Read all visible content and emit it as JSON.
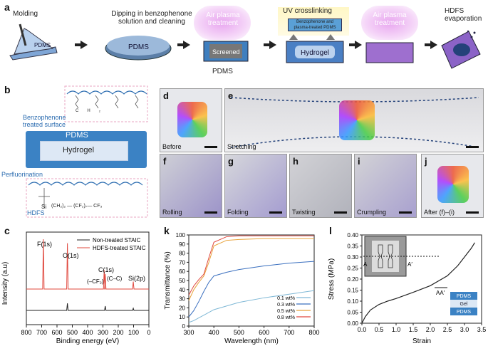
{
  "panels": {
    "a": "a",
    "b": "b",
    "c": "c",
    "d": "d",
    "e": "e",
    "f": "f",
    "g": "g",
    "h": "h",
    "i": "i",
    "j": "j",
    "k": "k",
    "l": "l"
  },
  "a": {
    "molding": "Molding",
    "pdms_small": "PDMS",
    "dipping_line1": "Dipping in benzophenone",
    "dipping_line2": "solution and cleaning",
    "dish_pdms": "PDMS",
    "air_plasma_1_line1": "Air plasma",
    "air_plasma_1_line2": "treatment",
    "screened": "Screened",
    "pdms_bottom": "PDMS",
    "uv": "UV crosslinking",
    "bz_line1": "Benzophenone and",
    "bz_line2": "plasma-treated PDMS",
    "hydrogel": "Hydrogel",
    "air_plasma_2_line1": "Air plasma",
    "air_plasma_2_line2": "treatment",
    "hdfs_line1": "HDFS",
    "hdfs_line2": "evaporation"
  },
  "b": {
    "benzo_line1": "Benzophenone",
    "benzo_line2": "treated surface",
    "pdms": "PDMS",
    "hydrogel": "Hydrogel",
    "perfluorination": "Perfluorination",
    "hdfs": "HDFS",
    "ch": "CH₂",
    "si": "Si",
    "chain": "(CH₂)₂ — (CF₂)₇— CF₃"
  },
  "photos": {
    "d": "Before",
    "e": "Stretching",
    "f": "Rolling",
    "g": "Folding",
    "h": "Twisting",
    "i": "Crumpling",
    "j": "After (f)–(i)"
  },
  "c": {
    "ylabel": "Intensity (a.u)",
    "xlabel": "Binding energy (eV)",
    "legend_non": "Non-treated STAIC",
    "legend_hdfs": "HDFS-treated STAIC",
    "peak_f": "F(1s)",
    "peak_o": "O(1s)",
    "peak_c": "C(1s)",
    "peak_cf": "(–CF₂)",
    "peak_cc": "(C–C)",
    "peak_si": "Si(2p)",
    "xticks": [
      "800",
      "700",
      "600",
      "500",
      "400",
      "300",
      "200",
      "100",
      "0"
    ]
  },
  "chart_data": [
    {
      "type": "line",
      "panel": "c",
      "xlabel": "Binding energy (eV)",
      "ylabel": "Intensity (a.u)",
      "xlim": [
        800,
        0
      ],
      "series": [
        {
          "name": "Non-treated STAIC",
          "color": "#222222",
          "peaks": [
            {
              "x": 532,
              "h": 0.33
            },
            {
              "x": 285,
              "h": 0.2
            },
            {
              "x": 102,
              "h": 0.1
            }
          ]
        },
        {
          "name": "HDFS-treated STAIC",
          "color": "#e0483e",
          "peaks": [
            {
              "x": 689,
              "h": 1.0
            },
            {
              "x": 532,
              "h": 0.92
            },
            {
              "x": 292,
              "h": 0.38
            },
            {
              "x": 285,
              "h": 0.3
            },
            {
              "x": 102,
              "h": 0.15
            }
          ]
        }
      ]
    },
    {
      "type": "line",
      "panel": "k",
      "xlabel": "Wavelength (nm)",
      "ylabel": "Transmittance (%)",
      "xlim": [
        300,
        800
      ],
      "ylim": [
        0,
        100
      ],
      "xticks": [
        300,
        400,
        500,
        600,
        700,
        800
      ],
      "yticks": [
        0,
        10,
        20,
        30,
        40,
        50,
        60,
        70,
        80,
        90,
        100
      ],
      "series": [
        {
          "name": "0.1 wt%",
          "color": "#7fb8d6",
          "x": [
            300,
            320,
            340,
            360,
            380,
            400,
            450,
            500,
            600,
            700,
            800
          ],
          "y": [
            4,
            6,
            9,
            12,
            15,
            18,
            22,
            26,
            31,
            35,
            39
          ]
        },
        {
          "name": "0.3 wt%",
          "color": "#3a6fbf",
          "x": [
            300,
            320,
            340,
            360,
            380,
            400,
            450,
            500,
            600,
            700,
            800
          ],
          "y": [
            10,
            17,
            27,
            38,
            48,
            55,
            59,
            62,
            66,
            69,
            71
          ]
        },
        {
          "name": "0.5 wt%",
          "color": "#e8a23a",
          "x": [
            300,
            320,
            340,
            360,
            380,
            400,
            450,
            500,
            600,
            700,
            800
          ],
          "y": [
            28,
            40,
            48,
            55,
            70,
            88,
            94,
            95,
            96,
            96,
            96
          ]
        },
        {
          "name": "0.8 wt%",
          "color": "#e0483e",
          "x": [
            300,
            320,
            340,
            360,
            380,
            400,
            450,
            500,
            600,
            700,
            800
          ],
          "y": [
            34,
            44,
            51,
            57,
            75,
            92,
            98,
            99,
            99,
            99,
            99
          ]
        }
      ]
    },
    {
      "type": "line",
      "panel": "l",
      "xlabel": "Strain",
      "ylabel": "Stress (MPa)",
      "xlim": [
        0,
        3.5
      ],
      "ylim": [
        0,
        0.4
      ],
      "xticks": [
        0,
        0.5,
        1.0,
        1.5,
        2.0,
        2.5,
        3.0,
        3.5
      ],
      "yticks": [
        0,
        0.05,
        0.1,
        0.15,
        0.2,
        0.25,
        0.3,
        0.35,
        0.4
      ],
      "series": [
        {
          "name": "stress-strain",
          "color": "#222222",
          "x": [
            0,
            0.1,
            0.25,
            0.5,
            0.75,
            1.0,
            1.5,
            2.0,
            2.5,
            2.8,
            3.0,
            3.1,
            3.2,
            3.3
          ],
          "y": [
            0,
            0.03,
            0.06,
            0.085,
            0.1,
            0.112,
            0.14,
            0.17,
            0.215,
            0.26,
            0.3,
            0.32,
            0.34,
            0.365
          ]
        }
      ]
    }
  ],
  "k": {
    "xlabel": "Wavelength (nm)",
    "ylabel": "Transmittance (%)",
    "legend": [
      "0.1 wt%",
      "0.3 wt%",
      "0.5 wt%",
      "0.8 wt%"
    ]
  },
  "l": {
    "xlabel": "Strain",
    "ylabel": "Stress (MPa)",
    "inset_a": "A",
    "inset_a2": "A′",
    "section_label": "AA′",
    "layer_top": "PDMS",
    "layer_mid": "Gel",
    "layer_bottom": "PDMS"
  }
}
